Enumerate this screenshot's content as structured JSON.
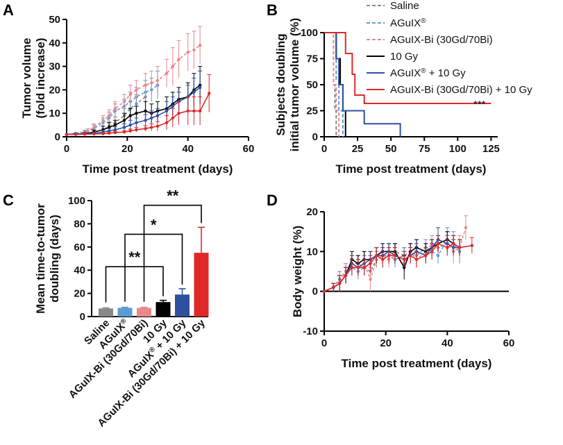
{
  "panels": {
    "A": "A",
    "B": "B",
    "C": "C",
    "D": "D"
  },
  "colors": {
    "saline": "#888888",
    "aguix": "#5b9bd5",
    "aguixbi": "#e8888a",
    "gy10": "#000000",
    "aguix10": "#2f4f9f",
    "aguixbi10": "#e0282a"
  },
  "chart_data": [
    {
      "id": "A",
      "type": "line",
      "title": "",
      "xlabel": "Time post treatment (days)",
      "ylabel": [
        "Tumor volume",
        "(fold increase)"
      ],
      "xlim": [
        0,
        60
      ],
      "ylim": [
        0,
        50
      ],
      "xticks": [
        0,
        20,
        40,
        60
      ],
      "yticks": [
        0,
        10,
        20,
        30,
        40,
        50
      ],
      "series": [
        {
          "name": "Saline",
          "color_key": "saline",
          "dash": true,
          "x": [
            0,
            3,
            6,
            9,
            12,
            14,
            16,
            19,
            21,
            23,
            26
          ],
          "y": [
            1,
            1.2,
            1.5,
            2,
            3,
            4.5,
            6,
            9,
            12,
            14,
            17
          ],
          "err": [
            0,
            0.3,
            0.6,
            1,
            1.5,
            2,
            2.5,
            3,
            3,
            4,
            5
          ]
        },
        {
          "name": "AGuIX®",
          "color_key": "aguix",
          "dash": true,
          "x": [
            0,
            3,
            6,
            9,
            12,
            14,
            16,
            19,
            21,
            23,
            26,
            28,
            30
          ],
          "y": [
            1,
            1.5,
            2,
            3.5,
            6,
            8,
            11,
            13,
            15,
            17,
            19,
            20,
            22
          ],
          "err": [
            0,
            0.3,
            0.8,
            1.5,
            2,
            2.5,
            3,
            3,
            4,
            4,
            5,
            5,
            6
          ]
        },
        {
          "name": "AGuIX-Bi (30Gd/70Bi)",
          "color_key": "aguixbi",
          "dash": true,
          "x": [
            0,
            3,
            5,
            7,
            9,
            12,
            14,
            16,
            19,
            21,
            23,
            26,
            28,
            30,
            33,
            35,
            37,
            40,
            42,
            44
          ],
          "y": [
            1,
            1.2,
            1.5,
            2.5,
            4,
            7,
            9,
            12,
            15,
            18,
            20,
            22,
            23,
            24,
            27,
            30,
            33,
            36,
            37,
            39
          ],
          "err": [
            0,
            0.3,
            0.5,
            1,
            1.5,
            2,
            2.5,
            3,
            3,
            4,
            4,
            5,
            5,
            6,
            6,
            8,
            8,
            8,
            8,
            8
          ]
        },
        {
          "name": "10 Gy",
          "color_key": "gy10",
          "dash": false,
          "x": [
            0,
            3,
            6,
            9,
            12,
            14,
            16,
            19,
            21,
            23,
            26,
            28,
            30,
            33,
            35,
            37,
            40,
            42,
            44
          ],
          "y": [
            1,
            1.1,
            1.3,
            2,
            3,
            4,
            5,
            7,
            9,
            10,
            11,
            10,
            11,
            12,
            14,
            16,
            17,
            20,
            22
          ],
          "err": [
            0,
            0.2,
            0.4,
            0.8,
            1.5,
            2,
            2,
            3,
            3,
            3,
            4,
            4,
            4,
            5,
            5,
            5,
            6,
            7,
            8
          ]
        },
        {
          "name": "AGuIX® + 10 Gy",
          "color_key": "aguix10",
          "dash": false,
          "x": [
            0,
            3,
            6,
            9,
            12,
            14,
            16,
            19,
            21,
            23,
            26,
            28,
            30,
            33,
            35,
            37,
            40,
            42,
            44
          ],
          "y": [
            1,
            1.1,
            1.2,
            1.5,
            2,
            2.5,
            3,
            4,
            5,
            6,
            7,
            8,
            9,
            11,
            13,
            15,
            17,
            19,
            21
          ],
          "err": [
            0,
            0.2,
            0.3,
            0.5,
            0.8,
            1,
            1.2,
            1.5,
            2,
            2,
            2.5,
            3,
            3,
            4,
            4,
            4,
            5,
            6,
            7
          ]
        },
        {
          "name": "AGuIX-Bi (30Gd/70Bi) + 10 Gy",
          "color_key": "aguixbi10",
          "dash": false,
          "x": [
            0,
            3,
            6,
            9,
            12,
            14,
            16,
            19,
            21,
            23,
            26,
            28,
            30,
            33,
            35,
            37,
            40,
            42,
            44,
            47
          ],
          "y": [
            1,
            1,
            1.1,
            1.2,
            1.3,
            1.5,
            1.8,
            2,
            2.5,
            3,
            3.5,
            4,
            4.5,
            6,
            8,
            10,
            11,
            11,
            11,
            18.5
          ],
          "err": [
            0,
            0.1,
            0.2,
            0.3,
            0.3,
            0.4,
            0.5,
            0.6,
            0.8,
            1,
            1.2,
            1.5,
            2,
            3,
            4,
            5,
            6,
            6,
            6,
            8
          ]
        }
      ]
    },
    {
      "id": "B",
      "type": "line",
      "title": "",
      "xlabel": "Time post treatment (days)",
      "ylabel": [
        "Subjects doubling",
        "initial tumor volume (%)"
      ],
      "xlim": [
        0,
        130
      ],
      "ylim": [
        0,
        100
      ],
      "xticks": [
        0,
        25,
        50,
        75,
        100,
        125
      ],
      "yticks": [
        0,
        25,
        50,
        75,
        100
      ],
      "annotation": "***",
      "legend": [
        "Saline",
        "AGuIX®",
        "AGuIX-Bi (30Gd/70Bi)",
        "10 Gy",
        "AGuIX® + 10 Gy",
        "AGuIX-Bi (30Gd/70Bi) + 10 Gy"
      ],
      "series": [
        {
          "name": "Saline",
          "color_key": "saline",
          "dash": true,
          "x": [
            0,
            7,
            7,
            8,
            8,
            9,
            9
          ],
          "y": [
            100,
            100,
            50,
            50,
            25,
            25,
            0
          ]
        },
        {
          "name": "AGuIX®",
          "color_key": "aguix",
          "dash": true,
          "x": [
            0,
            9,
            9,
            11,
            11,
            14,
            14
          ],
          "y": [
            100,
            100,
            55,
            55,
            25,
            25,
            0
          ]
        },
        {
          "name": "AGuIX-Bi (30Gd/70Bi)",
          "color_key": "aguixbi",
          "dash": true,
          "x": [
            0,
            7,
            7,
            9,
            9,
            11,
            11
          ],
          "y": [
            100,
            100,
            50,
            50,
            25,
            25,
            0
          ]
        },
        {
          "name": "10 Gy",
          "color_key": "gy10",
          "dash": false,
          "x": [
            0,
            9,
            9,
            12,
            12,
            14,
            14,
            16,
            16
          ],
          "y": [
            100,
            100,
            75,
            75,
            50,
            50,
            25,
            25,
            0
          ]
        },
        {
          "name": "AGuIX® + 10 Gy",
          "color_key": "aguix10",
          "dash": false,
          "x": [
            0,
            9,
            9,
            11,
            11,
            14,
            14,
            23,
            23,
            30,
            30,
            57,
            57
          ],
          "y": [
            100,
            100,
            75,
            75,
            50,
            50,
            25,
            25,
            25,
            25,
            12.5,
            12.5,
            0
          ]
        },
        {
          "name": "AGuIX-Bi (30Gd/70Bi) + 10 Gy",
          "color_key": "aguixbi10",
          "dash": false,
          "x": [
            0,
            16,
            16,
            21,
            21,
            23,
            23,
            30,
            30,
            125
          ],
          "y": [
            100,
            100,
            80,
            80,
            60,
            60,
            40,
            40,
            32,
            32
          ]
        }
      ]
    },
    {
      "id": "C",
      "type": "bar",
      "title": "",
      "xlabel": "",
      "ylabel": [
        "Mean time-to-tumor",
        "doubling (days)"
      ],
      "ylim": [
        0,
        100
      ],
      "yticks": [
        0,
        20,
        40,
        60,
        80,
        100
      ],
      "categories": [
        "Saline",
        "AGuIX®",
        "AGuIX-Bi (30Gd/70Bi)",
        "10 Gy",
        "AGuIX® + 10 Gy",
        "AGuIX-Bi (30Gd/70Bi) + 10 Gy"
      ],
      "color_keys": [
        "saline",
        "aguix",
        "aguixbi",
        "gy10",
        "aguix10",
        "aguixbi10"
      ],
      "values": [
        7,
        7.5,
        7.5,
        12.5,
        19,
        55
      ],
      "errors": [
        0.5,
        0.5,
        0.5,
        1.5,
        5,
        22
      ],
      "significance": [
        {
          "from": 0,
          "to": 3,
          "label": "**",
          "level": 43
        },
        {
          "from": 1,
          "to": 4,
          "label": "*",
          "level": 71
        },
        {
          "from": 2,
          "to": 5,
          "label": "**",
          "level": 96
        }
      ]
    },
    {
      "id": "D",
      "type": "line",
      "title": "",
      "xlabel": "Time post treatment (days)",
      "ylabel": [
        "Body weight (%)"
      ],
      "xlim": [
        0,
        60
      ],
      "ylim": [
        -10,
        20
      ],
      "xticks": [
        0,
        20,
        40,
        60
      ],
      "yticks": [
        -10,
        0,
        10,
        20
      ],
      "series": [
        {
          "name": "Saline",
          "color_key": "saline",
          "dash": true,
          "x": [
            0,
            3,
            5,
            7,
            9,
            11,
            13,
            15,
            17,
            19,
            21,
            23,
            26
          ],
          "y": [
            0,
            1,
            3,
            5,
            7,
            7,
            6,
            5,
            8,
            9,
            9,
            10,
            9
          ],
          "err": [
            0,
            1,
            2,
            2,
            2,
            2,
            2,
            2,
            2,
            2,
            2,
            2,
            2
          ]
        },
        {
          "name": "AGuIX®",
          "color_key": "aguix",
          "dash": true,
          "x": [
            0,
            3,
            5,
            7,
            9,
            11,
            13,
            15,
            17,
            19,
            21,
            23,
            26,
            28,
            30,
            33,
            35,
            37,
            40,
            42,
            44
          ],
          "y": [
            0,
            1,
            2,
            4,
            6,
            5,
            6,
            7,
            9,
            8,
            9,
            8,
            9,
            10,
            9,
            11,
            10,
            9,
            13,
            12,
            10
          ],
          "err": [
            0,
            1,
            2,
            2,
            2,
            2,
            2,
            2,
            2,
            2,
            2,
            2,
            2,
            2,
            2,
            2,
            2,
            2,
            3,
            3,
            3
          ]
        },
        {
          "name": "AGuIX-Bi (30Gd/70Bi)",
          "color_key": "aguixbi",
          "dash": true,
          "x": [
            0,
            3,
            5,
            7,
            9,
            11,
            13,
            15,
            17,
            19,
            21,
            23,
            26,
            28,
            30,
            33,
            35,
            37,
            40,
            42,
            44,
            46
          ],
          "y": [
            0,
            1,
            2,
            5,
            6,
            6,
            7,
            3,
            8,
            9,
            8,
            9,
            7,
            10,
            8,
            10,
            12,
            11,
            12,
            10,
            11,
            16
          ],
          "err": [
            0,
            1,
            2,
            2,
            2,
            2,
            3,
            3,
            2,
            2,
            2,
            2,
            2,
            2,
            2,
            2,
            2,
            2,
            3,
            3,
            3,
            3
          ]
        },
        {
          "name": "10 Gy",
          "color_key": "gy10",
          "dash": false,
          "x": [
            0,
            3,
            5,
            7,
            9,
            11,
            13,
            15,
            17,
            19,
            21,
            23,
            26,
            28,
            30,
            33,
            35,
            37,
            40,
            42,
            44
          ],
          "y": [
            0,
            1,
            2,
            4,
            8,
            7,
            8,
            8,
            9,
            10,
            10,
            10,
            6,
            10,
            11,
            10,
            11,
            12,
            13,
            12,
            11
          ],
          "err": [
            0,
            1,
            2,
            2,
            2,
            2,
            2,
            2,
            2,
            2,
            2,
            2,
            3,
            2,
            2,
            2,
            2,
            2,
            2,
            2,
            2
          ]
        },
        {
          "name": "AGuIX® + 10 Gy",
          "color_key": "aguix10",
          "dash": false,
          "x": [
            0,
            3,
            5,
            7,
            9,
            11,
            13,
            15,
            17,
            19,
            21,
            23,
            26,
            28,
            30,
            33,
            35,
            37,
            40,
            42,
            44
          ],
          "y": [
            0,
            1,
            2,
            4,
            7,
            6,
            7,
            8,
            9,
            9,
            10,
            9,
            8,
            9,
            10,
            9,
            11,
            13,
            12,
            11,
            11
          ],
          "err": [
            0,
            1,
            2,
            2,
            2,
            2,
            2,
            2,
            2,
            2,
            2,
            2,
            2,
            2,
            2,
            2,
            2,
            3,
            2,
            2,
            2
          ]
        },
        {
          "name": "AGuIX-Bi (30Gd/70Bi) + 10 Gy",
          "color_key": "aguixbi10",
          "dash": false,
          "x": [
            0,
            3,
            5,
            7,
            9,
            11,
            13,
            15,
            17,
            19,
            21,
            23,
            26,
            28,
            30,
            33,
            35,
            37,
            40,
            42,
            44,
            48
          ],
          "y": [
            0,
            1,
            2,
            4,
            6,
            6,
            6,
            7,
            9,
            8,
            9,
            9,
            8,
            9,
            8,
            9,
            10,
            12,
            11,
            12,
            11,
            11.5
          ],
          "err": [
            0,
            1,
            2,
            2,
            2,
            2,
            2,
            2,
            2,
            2,
            2,
            2,
            2,
            2,
            2,
            2,
            2,
            2,
            2,
            2,
            2,
            2
          ]
        }
      ]
    }
  ]
}
